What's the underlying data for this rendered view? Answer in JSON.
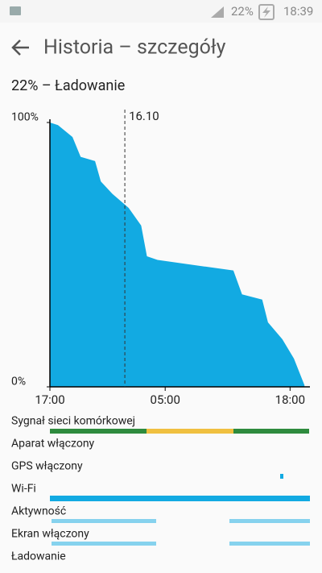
{
  "status_bar": {
    "battery": "22%",
    "time": "18:39"
  },
  "header": {
    "title": "Historia – szczegóły"
  },
  "summary": "22% – Ładowanie",
  "chart_data": {
    "type": "area",
    "color": "#12aae2",
    "x": [
      0,
      0.84,
      2.35,
      3.2,
      4.7,
      5.3,
      6.5,
      8.2,
      9.5,
      10.1,
      11.2,
      19.1,
      20,
      22.1,
      22.7,
      24.2,
      25.4,
      26.5
    ],
    "values": [
      100,
      99,
      94.5,
      87,
      85.4,
      77.7,
      73,
      67.7,
      61,
      49.4,
      48,
      44,
      35,
      33,
      24.4,
      18,
      10.7,
      0.6
    ],
    "xlim": [
      0,
      26.9
    ],
    "ylim": [
      0,
      100
    ],
    "xticks": [
      {
        "value": 0,
        "label": "17:00"
      },
      {
        "value": 12,
        "label": "05:00"
      },
      {
        "value": 25,
        "label": "18:00"
      }
    ],
    "yticks": [
      {
        "value": 100,
        "label": "100%"
      },
      {
        "value": 0,
        "label": "0%"
      }
    ],
    "date_marker": {
      "value": 7.8,
      "label": "16.10"
    }
  },
  "rows": [
    "Sygnał sieci komórkowej",
    "Aparat włączony",
    "GPS włączony",
    "Wi-Fi",
    "Aktywność",
    "Ekran włączony",
    "Ładowanie"
  ]
}
